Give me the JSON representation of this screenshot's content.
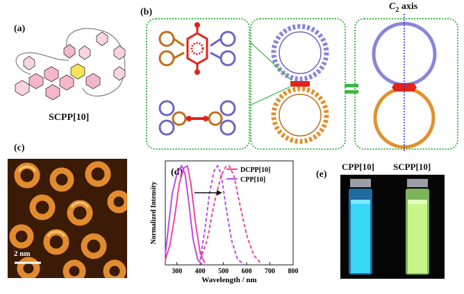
{
  "panels": {
    "a": {
      "label": "(a)",
      "name": "SCPP[10]"
    },
    "b": {
      "label": "(b)",
      "axis_label_main": "C",
      "axis_label_sub": "2",
      "axis_label_rest": " axis"
    },
    "c": {
      "label": "(c)",
      "scale_bar": "2 nm"
    },
    "d": {
      "label": "(d)"
    },
    "e": {
      "label": "(e)",
      "vial_left": "CPP[10]",
      "vial_right": "SCPP[10]"
    }
  },
  "colors": {
    "blue_ring": "#8a86d6",
    "orange_ring": "#e0922e",
    "red_core": "#e2231a",
    "pink_ring": "#f08cab",
    "green_box": "#3fb44a",
    "cyan_glow": "#3ad7f5",
    "green_glow": "#c7f58c",
    "magenta": "#f0449a",
    "violet": "#b44cf0"
  },
  "chart_data": {
    "type": "line",
    "xlabel": "Wavelength / nm",
    "ylabel": "Normalized Intensity",
    "xlim": [
      250,
      800
    ],
    "ylim": [
      0,
      1.05
    ],
    "xticks": [
      300,
      400,
      500,
      600,
      700,
      800
    ],
    "legend": [
      "DCPP[10]",
      "CPP[10]"
    ],
    "legend_position": "top-right",
    "series": [
      {
        "name": "DCPP[10]",
        "style": "solid",
        "color": "#f0449a",
        "x": [
          250,
          270,
          290,
          310,
          330,
          345,
          360,
          380,
          400,
          420
        ],
        "y": [
          0.05,
          0.2,
          0.48,
          0.82,
          0.98,
          1.0,
          0.82,
          0.42,
          0.12,
          0.02
        ]
      },
      {
        "name": "CPP[10]",
        "style": "solid",
        "color": "#b44cf0",
        "x": [
          250,
          265,
          280,
          300,
          320,
          335,
          350,
          370,
          390,
          410
        ],
        "y": [
          0.1,
          0.42,
          0.72,
          0.92,
          1.0,
          0.92,
          0.65,
          0.25,
          0.05,
          0.0
        ]
      },
      {
        "name": "DCPP[10]",
        "style": "dashed",
        "color": "#f0449a",
        "x": [
          400,
          430,
          460,
          490,
          510,
          525,
          545,
          570,
          600,
          630,
          660
        ],
        "y": [
          0.05,
          0.25,
          0.62,
          0.9,
          0.99,
          1.0,
          0.9,
          0.62,
          0.3,
          0.1,
          0.02
        ]
      },
      {
        "name": "CPP[10]",
        "style": "dashed",
        "color": "#b44cf0",
        "x": [
          400,
          420,
          440,
          460,
          475,
          490,
          510,
          535,
          560,
          590
        ],
        "y": [
          0.05,
          0.35,
          0.72,
          0.95,
          1.0,
          0.92,
          0.6,
          0.25,
          0.06,
          0.0
        ]
      }
    ]
  }
}
